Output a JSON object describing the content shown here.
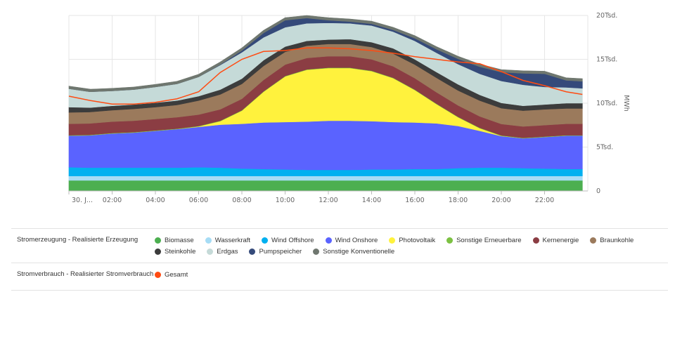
{
  "chart_data": {
    "type": "area",
    "stacked": true,
    "x": [
      "00:00",
      "01:00",
      "02:00",
      "03:00",
      "04:00",
      "05:00",
      "06:00",
      "07:00",
      "08:00",
      "09:00",
      "10:00",
      "11:00",
      "12:00",
      "13:00",
      "14:00",
      "15:00",
      "16:00",
      "17:00",
      "18:00",
      "19:00",
      "20:00",
      "21:00",
      "22:00",
      "23:00",
      "23:45"
    ],
    "x_tick_labels": [
      "30. J...",
      "02:00",
      "04:00",
      "06:00",
      "08:00",
      "10:00",
      "12:00",
      "14:00",
      "16:00",
      "18:00",
      "20:00",
      "22:00"
    ],
    "y_tick_labels": [
      "0",
      "5Tsd.",
      "10Tsd.",
      "15Tsd.",
      "20Tsd."
    ],
    "ylabel": "MWh",
    "ylim": [
      0,
      20000
    ],
    "grid": true,
    "series": [
      {
        "name": "Biomasse",
        "color": "#4caf50",
        "group": 0,
        "values": [
          1200,
          1200,
          1200,
          1200,
          1200,
          1200,
          1200,
          1200,
          1200,
          1200,
          1200,
          1200,
          1200,
          1200,
          1200,
          1200,
          1200,
          1200,
          1200,
          1200,
          1200,
          1200,
          1200,
          1200,
          1200
        ]
      },
      {
        "name": "Wasserkraft",
        "color": "#a6dcf5",
        "group": 0,
        "values": [
          500,
          500,
          500,
          500,
          500,
          500,
          500,
          500,
          500,
          500,
          500,
          500,
          500,
          500,
          500,
          500,
          500,
          500,
          500,
          500,
          500,
          500,
          500,
          500,
          500
        ]
      },
      {
        "name": "Wind Offshore",
        "color": "#00b0f0",
        "group": 0,
        "values": [
          1000,
          950,
          950,
          950,
          950,
          950,
          1000,
          950,
          850,
          800,
          750,
          700,
          700,
          700,
          750,
          750,
          800,
          800,
          900,
          950,
          950,
          900,
          850,
          800,
          800
        ]
      },
      {
        "name": "Wind Onshore",
        "color": "#5a63ff",
        "group": 0,
        "values": [
          3600,
          3700,
          3900,
          4000,
          4200,
          4400,
          4600,
          4900,
          5100,
          5300,
          5400,
          5500,
          5600,
          5600,
          5500,
          5400,
          5300,
          5200,
          4800,
          4200,
          3600,
          3400,
          3600,
          3800,
          3800
        ]
      },
      {
        "name": "Photovoltaik",
        "color": "#fff23d",
        "group": 0,
        "values": [
          0,
          0,
          0,
          0,
          0,
          0,
          50,
          400,
          1500,
          3500,
          5200,
          5900,
          6000,
          6000,
          5700,
          5000,
          3700,
          2200,
          1000,
          300,
          30,
          0,
          0,
          0,
          0
        ]
      },
      {
        "name": "Sonstige Erneuerbare",
        "color": "#7cc142",
        "group": 0,
        "values": [
          50,
          50,
          50,
          50,
          50,
          50,
          50,
          50,
          50,
          50,
          50,
          50,
          50,
          50,
          50,
          50,
          50,
          50,
          50,
          50,
          50,
          50,
          50,
          50,
          50
        ]
      },
      {
        "name": "Kernenergie",
        "color": "#8b3d43",
        "group": 0,
        "values": [
          1300,
          1300,
          1300,
          1300,
          1300,
          1300,
          1300,
          1300,
          1300,
          1300,
          1300,
          1300,
          1300,
          1300,
          1300,
          1300,
          1300,
          1300,
          1300,
          1300,
          1300,
          1300,
          1300,
          1300,
          1300
        ]
      },
      {
        "name": "Braunkohle",
        "color": "#9b7a5c",
        "group": 0,
        "values": [
          1300,
          1300,
          1300,
          1350,
          1350,
          1400,
          1600,
          1700,
          1700,
          1600,
          1450,
          1400,
          1400,
          1400,
          1400,
          1450,
          1550,
          1650,
          1700,
          1800,
          1800,
          1800,
          1800,
          1750,
          1750
        ]
      },
      {
        "name": "Steinkohle",
        "color": "#3c3c3c",
        "group": 0,
        "values": [
          600,
          500,
          500,
          500,
          500,
          500,
          500,
          550,
          600,
          650,
          600,
          550,
          500,
          550,
          550,
          600,
          600,
          650,
          700,
          650,
          600,
          550,
          550,
          600,
          600
        ]
      },
      {
        "name": "Erdgas",
        "color": "#c5dad8",
        "group": 0,
        "values": [
          2100,
          1800,
          1700,
          1700,
          1800,
          1900,
          2200,
          2800,
          3000,
          2600,
          2200,
          2000,
          1900,
          1800,
          1900,
          1900,
          2100,
          2200,
          2300,
          2400,
          2500,
          2400,
          2000,
          1800,
          1700
        ]
      },
      {
        "name": "Pumpspeicher",
        "color": "#354a7a",
        "group": 0,
        "values": [
          0,
          0,
          0,
          0,
          0,
          0,
          0,
          50,
          200,
          500,
          800,
          600,
          300,
          200,
          200,
          200,
          300,
          400,
          600,
          800,
          1000,
          1300,
          1500,
          800,
          800
        ]
      },
      {
        "name": "Sonstige Konventionelle",
        "color": "#6f776f",
        "group": 0,
        "values": [
          300,
          300,
          300,
          300,
          300,
          300,
          300,
          300,
          300,
          300,
          300,
          300,
          300,
          300,
          300,
          300,
          300,
          300,
          300,
          300,
          300,
          300,
          300,
          300,
          300
        ]
      },
      {
        "name": "Gesamt",
        "color": "#ff4b12",
        "group": 1,
        "type": "line",
        "values": [
          10800,
          10300,
          9900,
          9900,
          10100,
          10500,
          11300,
          13500,
          15000,
          15900,
          16000,
          16300,
          16300,
          16200,
          16000,
          15700,
          15300,
          15000,
          14700,
          14500,
          13600,
          12600,
          12000,
          11300,
          11000
        ]
      }
    ]
  },
  "legend": {
    "groups": [
      {
        "label": "Stromerzeugung - Realisierte Erzeugung",
        "items": [
          {
            "name": "Biomasse",
            "color": "#4caf50"
          },
          {
            "name": "Wasserkraft",
            "color": "#a6dcf5"
          },
          {
            "name": "Wind Offshore",
            "color": "#00b0f0"
          },
          {
            "name": "Wind Onshore",
            "color": "#5a63ff"
          },
          {
            "name": "Photovoltaik",
            "color": "#fff23d"
          },
          {
            "name": "Sonstige Erneuerbare",
            "color": "#7cc142"
          },
          {
            "name": "Kernenergie",
            "color": "#8b3d43"
          },
          {
            "name": "Braunkohle",
            "color": "#9b7a5c"
          },
          {
            "name": "Steinkohle",
            "color": "#3c3c3c"
          },
          {
            "name": "Erdgas",
            "color": "#c5dad8"
          },
          {
            "name": "Pumpspeicher",
            "color": "#354a7a"
          },
          {
            "name": "Sonstige Konventionelle",
            "color": "#6f776f"
          }
        ]
      },
      {
        "label": "Stromverbrauch - Realisierter Stromverbrauch",
        "items": [
          {
            "name": "Gesamt",
            "color": "#ff4b12"
          }
        ]
      }
    ]
  }
}
